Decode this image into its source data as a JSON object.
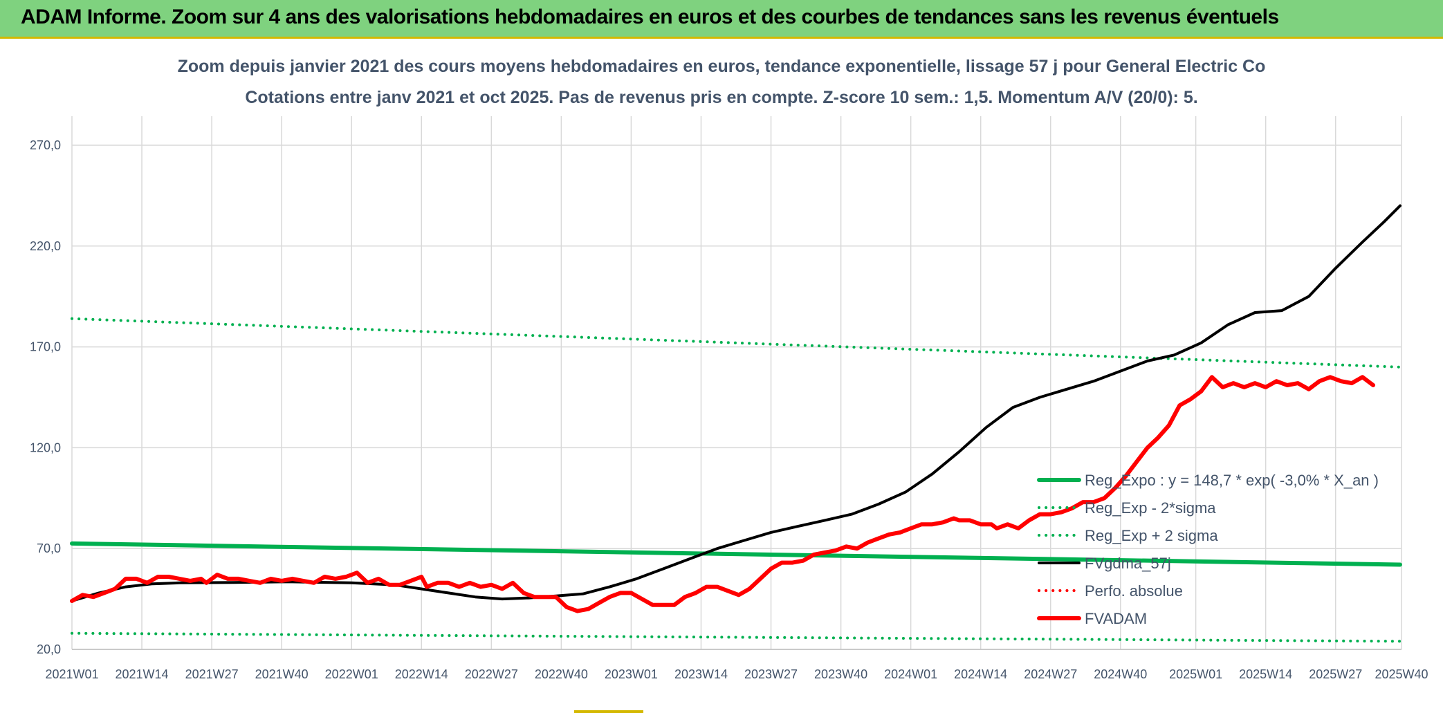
{
  "banner": {
    "title": "ADAM Informe. Zoom sur 4 ans des valorisations hebdomadaires en euros et des courbes de tendances sans les revenus éventuels"
  },
  "chart_data": {
    "type": "line",
    "title": "Zoom depuis janvier 2021 des cours moyens hebdomadaires en euros, tendance exponentielle, lissage 57 j pour General Electric Co",
    "subtitle": "Cotations entre janv 2021 et oct 2025. Pas de revenus pris en compte. Z-score 10 sem.: 1,5. Momentum A/V (20/0): 5.",
    "ylim": [
      20,
      285
    ],
    "y_ticks": [
      "20,0",
      "70,0",
      "120,0",
      "170,0",
      "220,0",
      "270,0"
    ],
    "y_tick_values": [
      20,
      70,
      120,
      170,
      220,
      270
    ],
    "x_range_weeks": [
      0,
      247
    ],
    "x_ticks": [
      "2021W01",
      "2021W14",
      "2021W27",
      "2021W40",
      "2022W01",
      "2022W14",
      "2022W27",
      "2022W40",
      "2023W01",
      "2023W14",
      "2023W27",
      "2023W40",
      "2024W01",
      "2024W14",
      "2024W27",
      "2024W40",
      "2025W01",
      "2025W14",
      "2025W27",
      "2025W40"
    ],
    "x_tick_weeks": [
      0,
      13,
      26,
      39,
      52,
      65,
      78,
      91,
      104,
      117,
      130,
      143,
      156,
      169,
      182,
      195,
      209,
      222,
      235,
      248
    ],
    "grid": true,
    "series": [
      {
        "name": "Reg_Expo : y = 148,7 * exp( -3,0% *  X_an )",
        "color": "#00b050",
        "style": "solid",
        "width": 6,
        "points": [
          [
            0,
            72.5
          ],
          [
            247,
            62.0
          ]
        ]
      },
      {
        "name": "Reg_Exp - 2*sigma",
        "color": "#00b050",
        "style": "dotted",
        "width": 4,
        "points": [
          [
            0,
            28.0
          ],
          [
            247,
            24.0
          ]
        ]
      },
      {
        "name": "Reg_Exp + 2 sigma",
        "color": "#00b050",
        "style": "dotted",
        "width": 4,
        "points": [
          [
            0,
            184.0
          ],
          [
            247,
            160.0
          ]
        ]
      },
      {
        "name": "FVgdma_57j",
        "color": "#000000",
        "style": "solid",
        "width": 4,
        "points": [
          [
            0,
            44
          ],
          [
            5,
            48
          ],
          [
            10,
            51
          ],
          [
            15,
            52.5
          ],
          [
            20,
            53
          ],
          [
            30,
            53.2
          ],
          [
            40,
            53.5
          ],
          [
            52,
            53
          ],
          [
            60,
            52
          ],
          [
            70,
            48
          ],
          [
            75,
            46
          ],
          [
            80,
            45
          ],
          [
            85,
            45.5
          ],
          [
            90,
            46.5
          ],
          [
            95,
            47.5
          ],
          [
            100,
            51
          ],
          [
            105,
            55
          ],
          [
            110,
            60
          ],
          [
            115,
            65
          ],
          [
            120,
            70
          ],
          [
            125,
            74
          ],
          [
            130,
            78
          ],
          [
            135,
            81
          ],
          [
            140,
            84
          ],
          [
            145,
            87
          ],
          [
            150,
            92
          ],
          [
            155,
            98
          ],
          [
            160,
            107
          ],
          [
            165,
            118
          ],
          [
            170,
            130
          ],
          [
            175,
            140
          ],
          [
            180,
            145
          ],
          [
            185,
            149
          ],
          [
            190,
            153
          ],
          [
            195,
            158
          ],
          [
            200,
            163
          ],
          [
            205,
            166
          ],
          [
            210,
            172
          ],
          [
            215,
            181
          ],
          [
            220,
            187
          ],
          [
            225,
            188
          ],
          [
            230,
            195
          ],
          [
            235,
            209
          ],
          [
            240,
            222
          ],
          [
            244,
            232
          ],
          [
            247,
            240
          ]
        ]
      },
      {
        "name": "Perfo. absolue",
        "color": "#ff0000",
        "style": "dotted",
        "width": 4,
        "points": []
      },
      {
        "name": "FVADAM",
        "color": "#ff0000",
        "style": "solid",
        "width": 6,
        "points": [
          [
            0,
            44
          ],
          [
            2,
            47
          ],
          [
            4,
            46
          ],
          [
            6,
            48
          ],
          [
            8,
            50
          ],
          [
            10,
            55
          ],
          [
            12,
            55
          ],
          [
            14,
            53
          ],
          [
            16,
            56
          ],
          [
            18,
            56
          ],
          [
            20,
            55
          ],
          [
            22,
            54
          ],
          [
            24,
            55
          ],
          [
            25,
            53
          ],
          [
            27,
            57
          ],
          [
            29,
            55
          ],
          [
            31,
            55
          ],
          [
            33,
            54
          ],
          [
            35,
            53
          ],
          [
            37,
            55
          ],
          [
            39,
            54
          ],
          [
            41,
            55
          ],
          [
            43,
            54
          ],
          [
            45,
            53
          ],
          [
            47,
            56
          ],
          [
            49,
            55
          ],
          [
            51,
            56
          ],
          [
            53,
            58
          ],
          [
            55,
            53
          ],
          [
            57,
            55
          ],
          [
            59,
            52
          ],
          [
            61,
            52
          ],
          [
            63,
            54
          ],
          [
            65,
            56
          ],
          [
            66,
            51
          ],
          [
            68,
            53
          ],
          [
            70,
            53
          ],
          [
            72,
            51
          ],
          [
            74,
            53
          ],
          [
            76,
            51
          ],
          [
            78,
            52
          ],
          [
            80,
            50
          ],
          [
            82,
            53
          ],
          [
            84,
            48
          ],
          [
            86,
            46
          ],
          [
            88,
            46
          ],
          [
            90,
            46
          ],
          [
            92,
            41
          ],
          [
            94,
            39
          ],
          [
            96,
            40
          ],
          [
            98,
            43
          ],
          [
            100,
            46
          ],
          [
            102,
            48
          ],
          [
            104,
            48
          ],
          [
            106,
            45
          ],
          [
            108,
            42
          ],
          [
            110,
            42
          ],
          [
            112,
            42
          ],
          [
            114,
            46
          ],
          [
            116,
            48
          ],
          [
            118,
            51
          ],
          [
            120,
            51
          ],
          [
            122,
            49
          ],
          [
            124,
            47
          ],
          [
            126,
            50
          ],
          [
            128,
            55
          ],
          [
            130,
            60
          ],
          [
            132,
            63
          ],
          [
            134,
            63
          ],
          [
            136,
            64
          ],
          [
            138,
            67
          ],
          [
            140,
            68
          ],
          [
            142,
            69
          ],
          [
            144,
            71
          ],
          [
            146,
            70
          ],
          [
            148,
            73
          ],
          [
            150,
            75
          ],
          [
            152,
            77
          ],
          [
            154,
            78
          ],
          [
            156,
            80
          ],
          [
            158,
            82
          ],
          [
            160,
            82
          ],
          [
            162,
            83
          ],
          [
            164,
            85
          ],
          [
            165,
            84
          ],
          [
            167,
            84
          ],
          [
            169,
            82
          ],
          [
            171,
            82
          ],
          [
            172,
            80
          ],
          [
            174,
            82
          ],
          [
            176,
            80
          ],
          [
            178,
            84
          ],
          [
            180,
            87
          ],
          [
            182,
            87
          ],
          [
            184,
            88
          ],
          [
            186,
            90
          ],
          [
            188,
            93
          ],
          [
            190,
            93
          ],
          [
            192,
            95
          ],
          [
            194,
            100
          ],
          [
            196,
            106
          ],
          [
            198,
            113
          ],
          [
            200,
            120
          ],
          [
            202,
            125
          ],
          [
            204,
            131
          ],
          [
            206,
            141
          ],
          [
            208,
            144
          ],
          [
            210,
            148
          ],
          [
            212,
            155
          ],
          [
            214,
            150
          ],
          [
            216,
            152
          ],
          [
            218,
            150
          ],
          [
            220,
            152
          ],
          [
            222,
            150
          ],
          [
            224,
            153
          ],
          [
            226,
            151
          ],
          [
            228,
            152
          ],
          [
            230,
            149
          ],
          [
            232,
            153
          ],
          [
            234,
            155
          ],
          [
            236,
            153
          ],
          [
            238,
            152
          ],
          [
            240,
            155
          ],
          [
            242,
            151
          ]
        ]
      }
    ]
  }
}
